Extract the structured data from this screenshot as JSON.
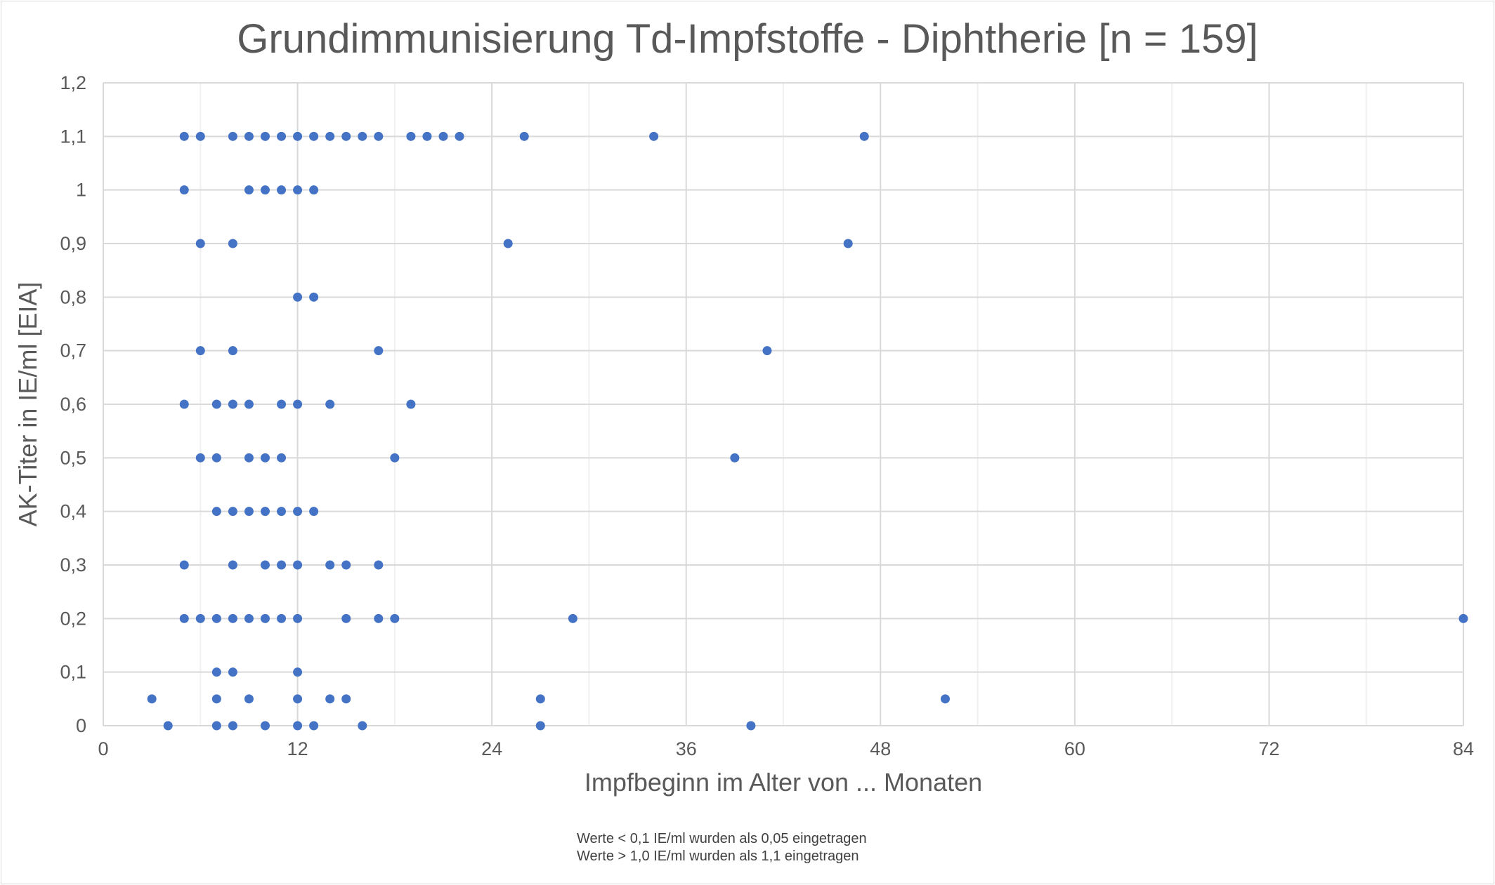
{
  "chart_data": {
    "type": "scatter",
    "title": "Grundimmunisierung Td-Impfstoffe - Diphtherie [n = 159]",
    "xlabel": "Impfbeginn im Alter von ... Monaten",
    "ylabel": "AK-Titer in IE/ml [EIA]",
    "xlim": [
      0,
      84
    ],
    "ylim": [
      0,
      1.2
    ],
    "x_ticks": [
      0,
      12,
      24,
      36,
      48,
      60,
      72,
      84
    ],
    "x_tick_labels": [
      "0",
      "12",
      "24",
      "36",
      "48",
      "60",
      "72",
      "84"
    ],
    "y_ticks": [
      0,
      0.1,
      0.2,
      0.3,
      0.4,
      0.5,
      0.6,
      0.7,
      0.8,
      0.9,
      1.0,
      1.1,
      1.2
    ],
    "y_tick_labels": [
      "0",
      "0,1",
      "0,2",
      "0,3",
      "0,4",
      "0,5",
      "0,6",
      "0,7",
      "0,8",
      "0,9",
      "1",
      "1,1",
      "1,2"
    ],
    "grid": true,
    "marker_color": "#4472c4",
    "points": [
      [
        5,
        1.1
      ],
      [
        6,
        1.1
      ],
      [
        8,
        1.1
      ],
      [
        9,
        1.1
      ],
      [
        10,
        1.1
      ],
      [
        11,
        1.1
      ],
      [
        12,
        1.1
      ],
      [
        13,
        1.1
      ],
      [
        14,
        1.1
      ],
      [
        15,
        1.1
      ],
      [
        16,
        1.1
      ],
      [
        17,
        1.1
      ],
      [
        19,
        1.1
      ],
      [
        20,
        1.1
      ],
      [
        21,
        1.1
      ],
      [
        22,
        1.1
      ],
      [
        26,
        1.1
      ],
      [
        34,
        1.1
      ],
      [
        47,
        1.1
      ],
      [
        5,
        1.0
      ],
      [
        9,
        1.0
      ],
      [
        10,
        1.0
      ],
      [
        11,
        1.0
      ],
      [
        12,
        1.0
      ],
      [
        13,
        1.0
      ],
      [
        6,
        0.9
      ],
      [
        8,
        0.9
      ],
      [
        25,
        0.9
      ],
      [
        46,
        0.9
      ],
      [
        12,
        0.8
      ],
      [
        13,
        0.8
      ],
      [
        6,
        0.7
      ],
      [
        8,
        0.7
      ],
      [
        17,
        0.7
      ],
      [
        41,
        0.7
      ],
      [
        5,
        0.6
      ],
      [
        7,
        0.6
      ],
      [
        8,
        0.6
      ],
      [
        9,
        0.6
      ],
      [
        11,
        0.6
      ],
      [
        12,
        0.6
      ],
      [
        14,
        0.6
      ],
      [
        19,
        0.6
      ],
      [
        6,
        0.5
      ],
      [
        7,
        0.5
      ],
      [
        9,
        0.5
      ],
      [
        10,
        0.5
      ],
      [
        11,
        0.5
      ],
      [
        18,
        0.5
      ],
      [
        39,
        0.5
      ],
      [
        7,
        0.4
      ],
      [
        8,
        0.4
      ],
      [
        9,
        0.4
      ],
      [
        10,
        0.4
      ],
      [
        11,
        0.4
      ],
      [
        12,
        0.4
      ],
      [
        13,
        0.4
      ],
      [
        5,
        0.3
      ],
      [
        8,
        0.3
      ],
      [
        10,
        0.3
      ],
      [
        11,
        0.3
      ],
      [
        12,
        0.3
      ],
      [
        14,
        0.3
      ],
      [
        15,
        0.3
      ],
      [
        17,
        0.3
      ],
      [
        5,
        0.2
      ],
      [
        6,
        0.2
      ],
      [
        7,
        0.2
      ],
      [
        8,
        0.2
      ],
      [
        9,
        0.2
      ],
      [
        10,
        0.2
      ],
      [
        11,
        0.2
      ],
      [
        12,
        0.2
      ],
      [
        15,
        0.2
      ],
      [
        17,
        0.2
      ],
      [
        18,
        0.2
      ],
      [
        29,
        0.2
      ],
      [
        84,
        0.2
      ],
      [
        7,
        0.1
      ],
      [
        8,
        0.1
      ],
      [
        12,
        0.1
      ],
      [
        3,
        0.05
      ],
      [
        7,
        0.05
      ],
      [
        9,
        0.05
      ],
      [
        12,
        0.05
      ],
      [
        14,
        0.05
      ],
      [
        15,
        0.05
      ],
      [
        27,
        0.05
      ],
      [
        52,
        0.05
      ],
      [
        4,
        0
      ],
      [
        7,
        0
      ],
      [
        8,
        0
      ],
      [
        10,
        0
      ],
      [
        12,
        0
      ],
      [
        13,
        0
      ],
      [
        16,
        0
      ],
      [
        27,
        0
      ],
      [
        40,
        0
      ]
    ],
    "notes": [
      "Werte < 0,1 IE/ml wurden als 0,05 eingetragen",
      "Werte > 1,0 IE/ml wurden als 1,1 eingetragen"
    ]
  }
}
